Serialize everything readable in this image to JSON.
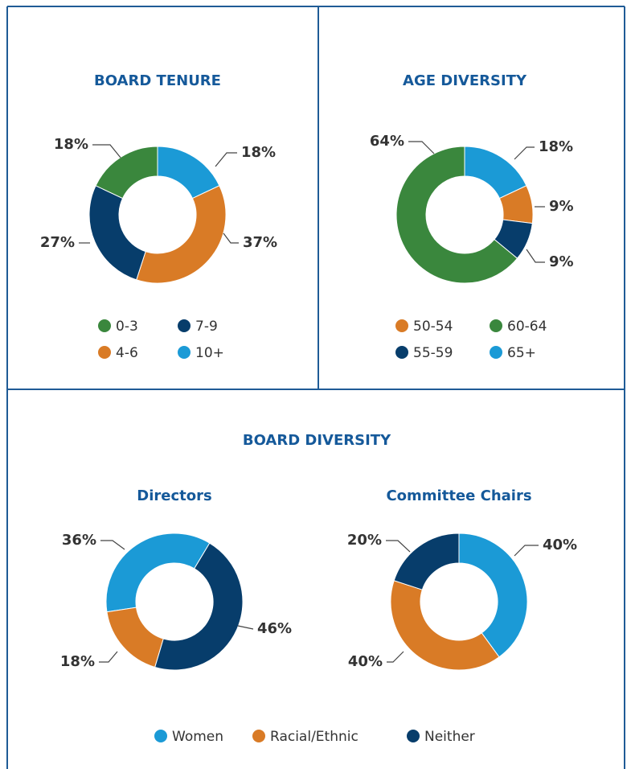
{
  "chart_data": [
    {
      "type": "donut",
      "title": "BOARD TENURE",
      "categories": [
        "10+",
        "4-6",
        "7-9",
        "0-3"
      ],
      "values": [
        18,
        37,
        27,
        18
      ],
      "value_labels": [
        "18%",
        "37%",
        "27%",
        "18%"
      ],
      "colors": [
        "#1b9ad6",
        "#d97b26",
        "#073d6b",
        "#3a873d"
      ]
    },
    {
      "type": "donut",
      "title": "AGE DIVERSITY",
      "categories": [
        "65+",
        "50-54",
        "55-59",
        "60-64"
      ],
      "values": [
        18,
        9,
        9,
        64
      ],
      "value_labels": [
        "18%",
        "9%",
        "9%",
        "64%"
      ],
      "colors": [
        "#1b9ad6",
        "#d97b26",
        "#073d6b",
        "#3a873d"
      ]
    },
    {
      "type": "donut",
      "title": "BOARD DIVERSITY",
      "categories": [
        "Women",
        "Racial/Ethnic",
        "Neither"
      ],
      "colors": [
        "#1b9ad6",
        "#d97b26",
        "#073d6b"
      ],
      "series": [
        {
          "name": "Directors",
          "values": [
            36,
            18,
            46
          ],
          "value_labels": [
            "36%",
            "18%",
            "46%"
          ]
        },
        {
          "name": "Committee Chairs",
          "values": [
            40,
            40,
            20
          ],
          "value_labels": [
            "40%",
            "40%",
            "20%"
          ]
        }
      ]
    }
  ]
}
